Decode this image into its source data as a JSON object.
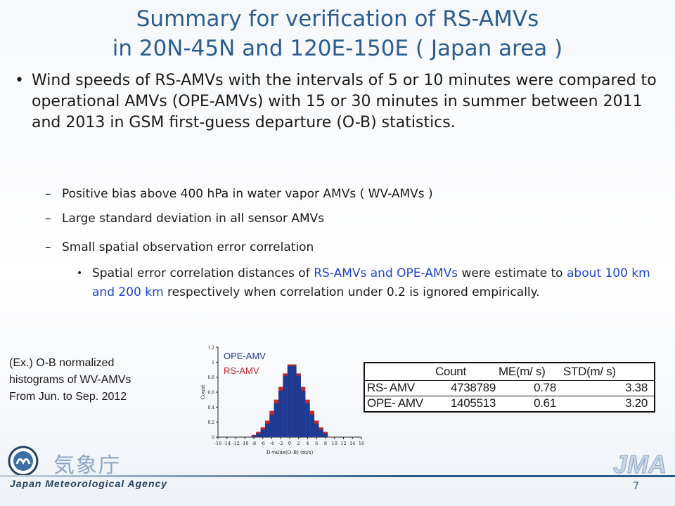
{
  "slide": {
    "title_line1": "Summary for verification of RS-AMVs",
    "title_line2": "in 20N-45N and 120E-150E ( Japan area )",
    "bullet_main": "Wind speeds of RS-AMVs with the intervals of 5 or 10 minutes were compared to operational AMVs (OPE-AMVs) with 15 or 30 minutes in summer between 2011 and 2013 in GSM first-guess departure (O-B) statistics.",
    "sub_bullets": [
      "Positive bias above 400 hPa in water vapor AMVs ( WV-AMVs )",
      "Large standard deviation in all sensor AMVs",
      "Small spatial observation error correlation"
    ],
    "sub_sub_bullet": {
      "part1": "Spatial error correlation distances of ",
      "hl1": "RS-AMVs and OPE-AMVs",
      "part2": " were estimate to ",
      "hl2": "about 100 km and 200 km",
      "part3": " respectively when correlation under 0.2 is ignored empirically."
    },
    "caption_lines": [
      "(Ex.) O-B normalized",
      "histograms of WV-AMVs",
      "From Jun. to Sep. 2012"
    ],
    "page_number": "7",
    "org_name_en": "Japan Meteorological Agency",
    "org_name_jp": "気象庁",
    "org_logo_text": "JMA"
  },
  "stats_table": {
    "headers": [
      "Count",
      "ME(m/ s)",
      "STD(m/ s)"
    ],
    "rows": [
      {
        "name": "RS- AMV",
        "count": "4738789",
        "me": "0.78",
        "std": "3.38"
      },
      {
        "name": "OPE- AMV",
        "count": "1405513",
        "me": "0.61",
        "std": "3.20"
      }
    ]
  },
  "colors": {
    "title": "#2c5d8f",
    "highlight": "#1f45c8",
    "ope": "#1f3a93",
    "rs": "#c1272d"
  },
  "chart_data": {
    "type": "bar",
    "xlabel": "D-value(O-B) (m/s)",
    "ylabel": "Count",
    "xlim": [
      -16,
      16
    ],
    "ylim": [
      0,
      1.2
    ],
    "xticks": [
      "-16",
      "-14",
      "-12",
      "-10",
      "-8",
      "-6",
      "-4",
      "-2",
      "0",
      "2",
      "4",
      "6",
      "8",
      "10",
      "12",
      "14",
      "16"
    ],
    "yticks": [
      "0",
      "0.2",
      "0.4",
      "0.6",
      "0.8",
      "1",
      "1.2"
    ],
    "x": [
      -8,
      -7,
      -6,
      -5,
      -4,
      -3,
      -2,
      -1,
      0,
      1,
      2,
      3,
      4,
      5,
      6,
      7,
      8
    ],
    "series": [
      {
        "name": "OPE-AMV",
        "values": [
          0.02,
          0.05,
          0.1,
          0.18,
          0.3,
          0.45,
          0.62,
          0.82,
          0.95,
          0.95,
          0.82,
          0.62,
          0.45,
          0.3,
          0.18,
          0.1,
          0.05
        ]
      },
      {
        "name": "RS-AMV",
        "values": [
          0.03,
          0.07,
          0.13,
          0.22,
          0.35,
          0.5,
          0.67,
          0.85,
          0.97,
          0.97,
          0.85,
          0.67,
          0.5,
          0.35,
          0.22,
          0.13,
          0.07
        ]
      }
    ]
  }
}
